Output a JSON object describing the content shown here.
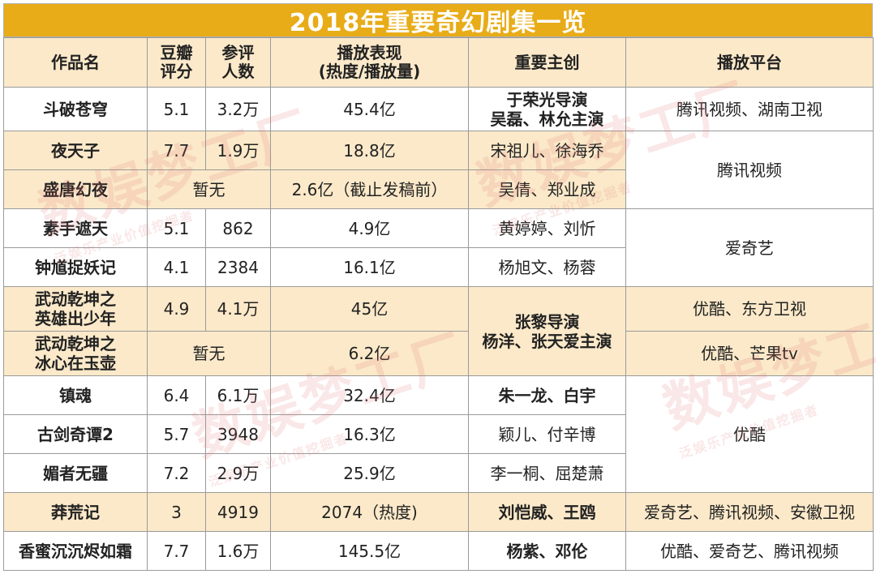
{
  "title": "2018年重要奇幻剧集一览",
  "headers": {
    "name": "作品名",
    "score_1": "豆瓣",
    "score_2": "评分",
    "voters_1": "参评",
    "voters_2": "人数",
    "perf_1": "播放表现",
    "perf_2": "(热度/播放量)",
    "creators": "重要主创",
    "platform": "播放平台"
  },
  "rows": [
    {
      "name": "斗破苍穹",
      "score": "5.1",
      "voters": "3.2万",
      "perf": "45.4亿",
      "creators_1": "于荣光导演",
      "creators_2": "吴磊、林允主演",
      "platform": "腾讯视频、湖南卫视"
    },
    {
      "name": "夜天子",
      "score": "7.7",
      "voters": "1.9万",
      "perf": "18.8亿",
      "creators": "宋祖儿、徐海乔",
      "platform": "腾讯视频"
    },
    {
      "name": "盛唐幻夜",
      "score_voters": "暂无",
      "perf": "2.6亿（截止发稿前）",
      "creators": "吴倩、郑业成"
    },
    {
      "name": "素手遮天",
      "score": "5.1",
      "voters": "862",
      "perf": "4.9亿",
      "creators": "黄婷婷、刘忻",
      "platform": "爱奇艺"
    },
    {
      "name": "钟馗捉妖记",
      "score": "4.1",
      "voters": "2384",
      "perf": "16.1亿",
      "creators": "杨旭文、杨蓉"
    },
    {
      "name_1": "武动乾坤之",
      "name_2": "英雄出少年",
      "score": "4.9",
      "voters": "4.1万",
      "perf": "45亿",
      "creators_1": "张黎导演",
      "creators_2": "杨洋、张天爱主演",
      "platform": "优酷、东方卫视"
    },
    {
      "name_1": "武动乾坤之",
      "name_2": "冰心在玉壶",
      "score_voters": "暂无",
      "perf": "6.2亿",
      "platform": "优酷、芒果tv"
    },
    {
      "name": "镇魂",
      "score": "6.4",
      "voters": "6.1万",
      "perf": "32.4亿",
      "creators": "朱一龙、白宇",
      "platform": "优酷"
    },
    {
      "name": "古剑奇谭2",
      "score": "5.7",
      "voters": "3948",
      "perf": "16.3亿",
      "creators": "颖儿、付辛博"
    },
    {
      "name": "媚者无疆",
      "score": "7.2",
      "voters": "2.9万",
      "perf": "25.9亿",
      "creators": "李一桐、屈楚萧"
    },
    {
      "name": "莽荒记",
      "score": "3",
      "voters": "4919",
      "perf": "2074（热度)",
      "creators": "刘恺威、王鸥",
      "platform": "爱奇艺、腾讯视频、安徽卫视"
    },
    {
      "name": "香蜜沉沉烬如霜",
      "score": "7.7",
      "voters": "1.6万",
      "perf": "145.5亿",
      "creators": "杨紫、邓伦",
      "platform": "优酷、爱奇艺、腾讯视频"
    }
  ],
  "watermark": {
    "main": "数娱梦工厂",
    "sub": "泛娱乐产业价值挖掘者"
  },
  "colors": {
    "title_bg": "#e8ac18",
    "stripe": "#fbe9c9",
    "border": "#9a9a9a"
  }
}
